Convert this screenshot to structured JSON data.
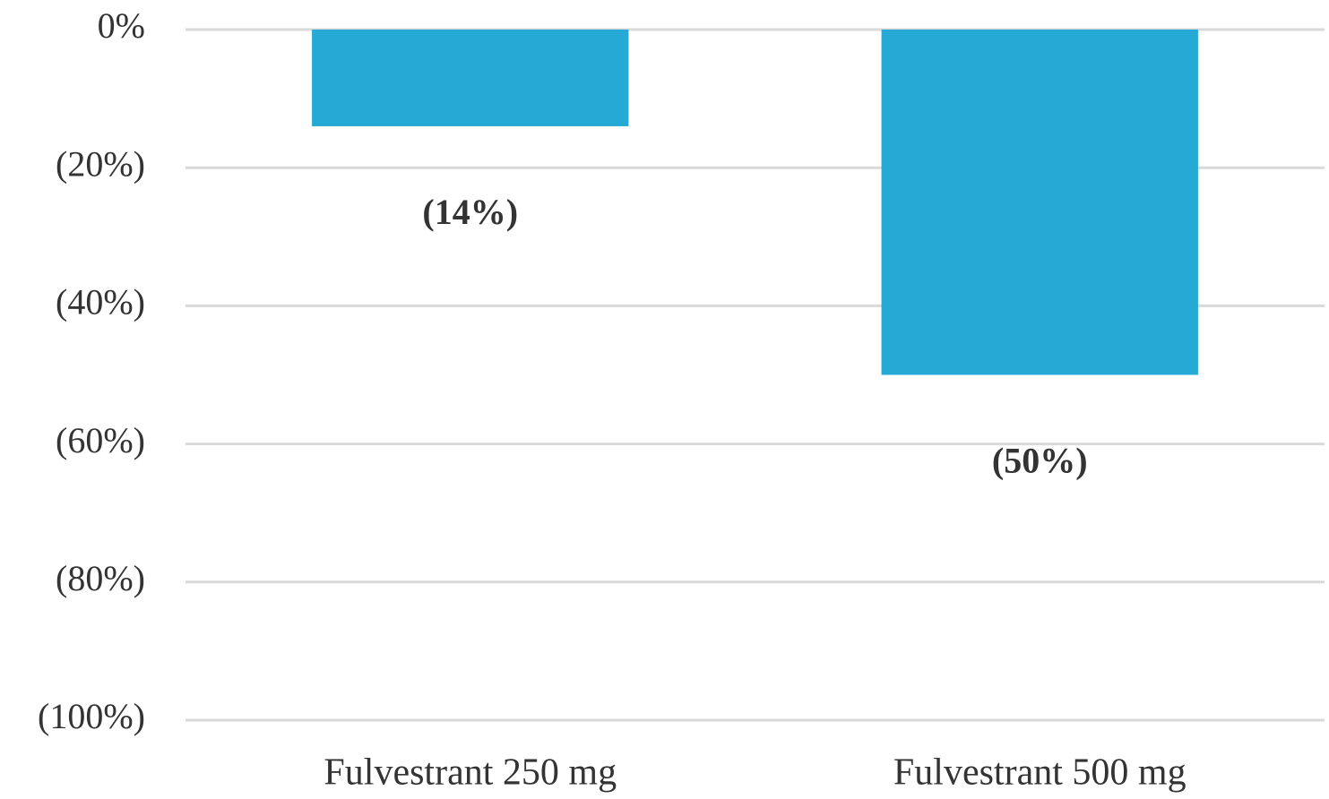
{
  "chart_data": {
    "type": "bar",
    "categories": [
      "Fulvestrant 250 mg",
      "Fulvestrant 500 mg"
    ],
    "values": [
      -14,
      -50
    ],
    "value_labels": [
      "(14%)",
      "(50%)"
    ],
    "color": "#26a9d4",
    "ylim": [
      -100,
      0
    ],
    "yticks": [
      {
        "value": 0,
        "label": "0%"
      },
      {
        "value": -20,
        "label": "(20%)"
      },
      {
        "value": -40,
        "label": "(40%)"
      },
      {
        "value": -60,
        "label": "(60%)"
      },
      {
        "value": -80,
        "label": "(80%)"
      },
      {
        "value": -100,
        "label": "(100%)"
      }
    ],
    "grid": true
  }
}
